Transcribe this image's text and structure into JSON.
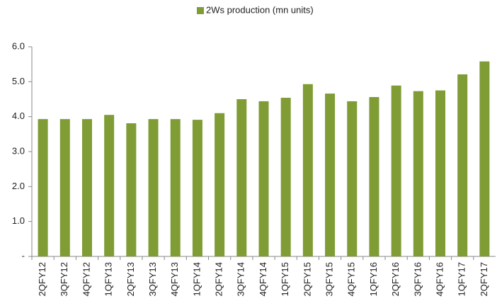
{
  "chart_data": {
    "type": "bar",
    "categories": [
      "2QFY12",
      "3QFY12",
      "4QFY12",
      "1QFY13",
      "2QFY13",
      "3QFY13",
      "4QFY13",
      "1QFY14",
      "2QFY14",
      "3QFY14",
      "4QFY14",
      "1QFY15",
      "2QFY15",
      "3QFY15",
      "4QFY15",
      "1QFY16",
      "2QFY16",
      "3QFY16",
      "4QFY16",
      "1QFY17",
      "2QFY17"
    ],
    "series": [
      {
        "name": "2Ws production (mn units)",
        "color": "#7f9c35",
        "values": [
          3.93,
          3.93,
          3.93,
          4.05,
          3.81,
          3.93,
          3.93,
          3.91,
          4.1,
          4.5,
          4.44,
          4.54,
          4.93,
          4.66,
          4.44,
          4.56,
          4.89,
          4.73,
          4.75,
          5.21,
          5.58
        ]
      }
    ],
    "ylim": [
      0,
      6
    ],
    "yticks": [
      {
        "value": 0,
        "label": "-"
      },
      {
        "value": 1,
        "label": "1.0"
      },
      {
        "value": 2,
        "label": "2.0"
      },
      {
        "value": 3,
        "label": "3.0"
      },
      {
        "value": 4,
        "label": "4.0"
      },
      {
        "value": 5,
        "label": "5.0"
      },
      {
        "value": 6,
        "label": "6.0"
      }
    ],
    "grid": false,
    "legend": "top"
  }
}
